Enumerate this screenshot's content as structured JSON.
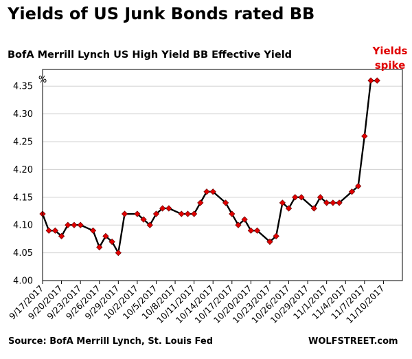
{
  "header": {
    "title": "Yields of US Junk Bonds rated BB",
    "subtitle": "BofA Merrill Lynch US High Yield BB Effective Yield"
  },
  "annotation": {
    "line1": "Yields",
    "line2": "spike",
    "color": "#e00000"
  },
  "footer": {
    "source": "Source: BofA Merrill Lynch, St. Louis Fed",
    "brand": "WOLFSTREET.com"
  },
  "chart_data": {
    "type": "line",
    "title": "Yields of US Junk Bonds rated BB",
    "subtitle": "BofA Merrill Lynch US High Yield BB Effective Yield",
    "ylabel": "%",
    "xlabel": "",
    "ylim": [
      4.0,
      4.38
    ],
    "yticks": [
      "4.00",
      "4.05",
      "4.10",
      "4.15",
      "4.20",
      "4.25",
      "4.30",
      "4.35"
    ],
    "xlim_day": [
      0,
      57
    ],
    "xtick_labels": [
      "9/17/2017",
      "9/20/2017",
      "9/23/2017",
      "9/26/2017",
      "9/29/2017",
      "10/2/2017",
      "10/5/2017",
      "10/8/2017",
      "10/11/2017",
      "10/14/2017",
      "10/17/2017",
      "10/20/2017",
      "10/23/2017",
      "10/26/2017",
      "10/29/2017",
      "11/1/2017",
      "11/4/2017",
      "11/7/2017",
      "11/10/2017"
    ],
    "xtick_days": [
      0,
      3,
      6,
      9,
      12,
      15,
      18,
      21,
      24,
      27,
      30,
      33,
      36,
      39,
      42,
      45,
      48,
      51,
      54
    ],
    "series": [
      {
        "name": "BB Effective Yield",
        "line_color": "#000000",
        "marker_color": "#e00000",
        "days": [
          0,
          1,
          2,
          3,
          4,
          5,
          6,
          8,
          9,
          10,
          11,
          12,
          13,
          15,
          16,
          17,
          18,
          19,
          20,
          22,
          23,
          24,
          25,
          26,
          27,
          29,
          30,
          31,
          32,
          33,
          34,
          36,
          37,
          38,
          39,
          40,
          41,
          43,
          44,
          45,
          46,
          47,
          49,
          50,
          51,
          52,
          53
        ],
        "dates": [
          "9/17",
          "9/18",
          "9/19",
          "9/20",
          "9/21",
          "9/22",
          "9/23",
          "9/25",
          "9/26",
          "9/27",
          "9/28",
          "9/29",
          "9/30",
          "10/2",
          "10/3",
          "10/4",
          "10/5",
          "10/6",
          "10/7",
          "10/9",
          "10/10",
          "10/11",
          "10/12",
          "10/13",
          "10/14",
          "10/16",
          "10/17",
          "10/18",
          "10/19",
          "10/20",
          "10/21",
          "10/23",
          "10/24",
          "10/25",
          "10/26",
          "10/27",
          "10/28",
          "10/30",
          "10/31",
          "11/1",
          "11/2",
          "11/3",
          "11/5",
          "11/6",
          "11/7",
          "11/8",
          "11/9"
        ],
        "values": [
          4.12,
          4.09,
          4.09,
          4.08,
          4.1,
          4.1,
          4.1,
          4.09,
          4.06,
          4.08,
          4.07,
          4.05,
          4.12,
          4.12,
          4.11,
          4.1,
          4.12,
          4.13,
          4.13,
          4.12,
          4.12,
          4.12,
          4.14,
          4.16,
          4.16,
          4.14,
          4.12,
          4.1,
          4.11,
          4.09,
          4.09,
          4.07,
          4.08,
          4.14,
          4.13,
          4.15,
          4.15,
          4.13,
          4.15,
          4.14,
          4.14,
          4.14,
          4.16,
          4.17,
          4.26,
          4.36,
          4.36
        ]
      }
    ]
  }
}
